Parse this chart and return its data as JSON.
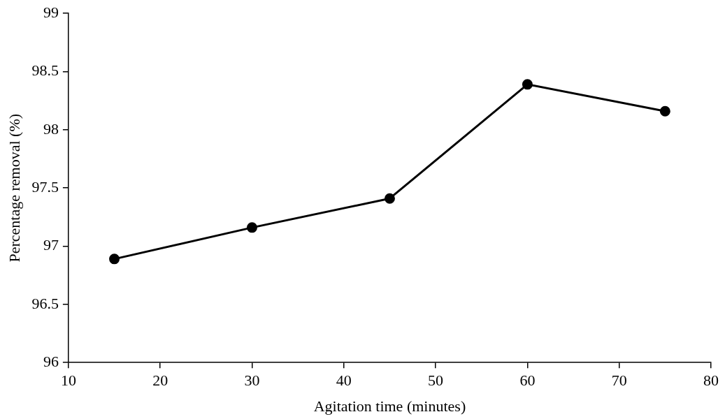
{
  "chart_data": {
    "type": "line",
    "xlabel": "Agitation time (minutes)",
    "ylabel": "Percentage removal (%)",
    "x": [
      15,
      30,
      45,
      60,
      75
    ],
    "series": [
      {
        "color": "#000000",
        "values": [
          96.89,
          97.16,
          97.41,
          98.39,
          98.16
        ]
      }
    ],
    "xlim": [
      10,
      80
    ],
    "xticks": [
      10,
      20,
      30,
      40,
      50,
      60,
      70,
      80
    ],
    "ylim": [
      96,
      99
    ],
    "yticks": [
      96,
      96.5,
      97,
      97.5,
      98,
      98.5,
      99
    ],
    "grid": false,
    "legend": false,
    "marker": "circle",
    "line_style": "solid"
  }
}
